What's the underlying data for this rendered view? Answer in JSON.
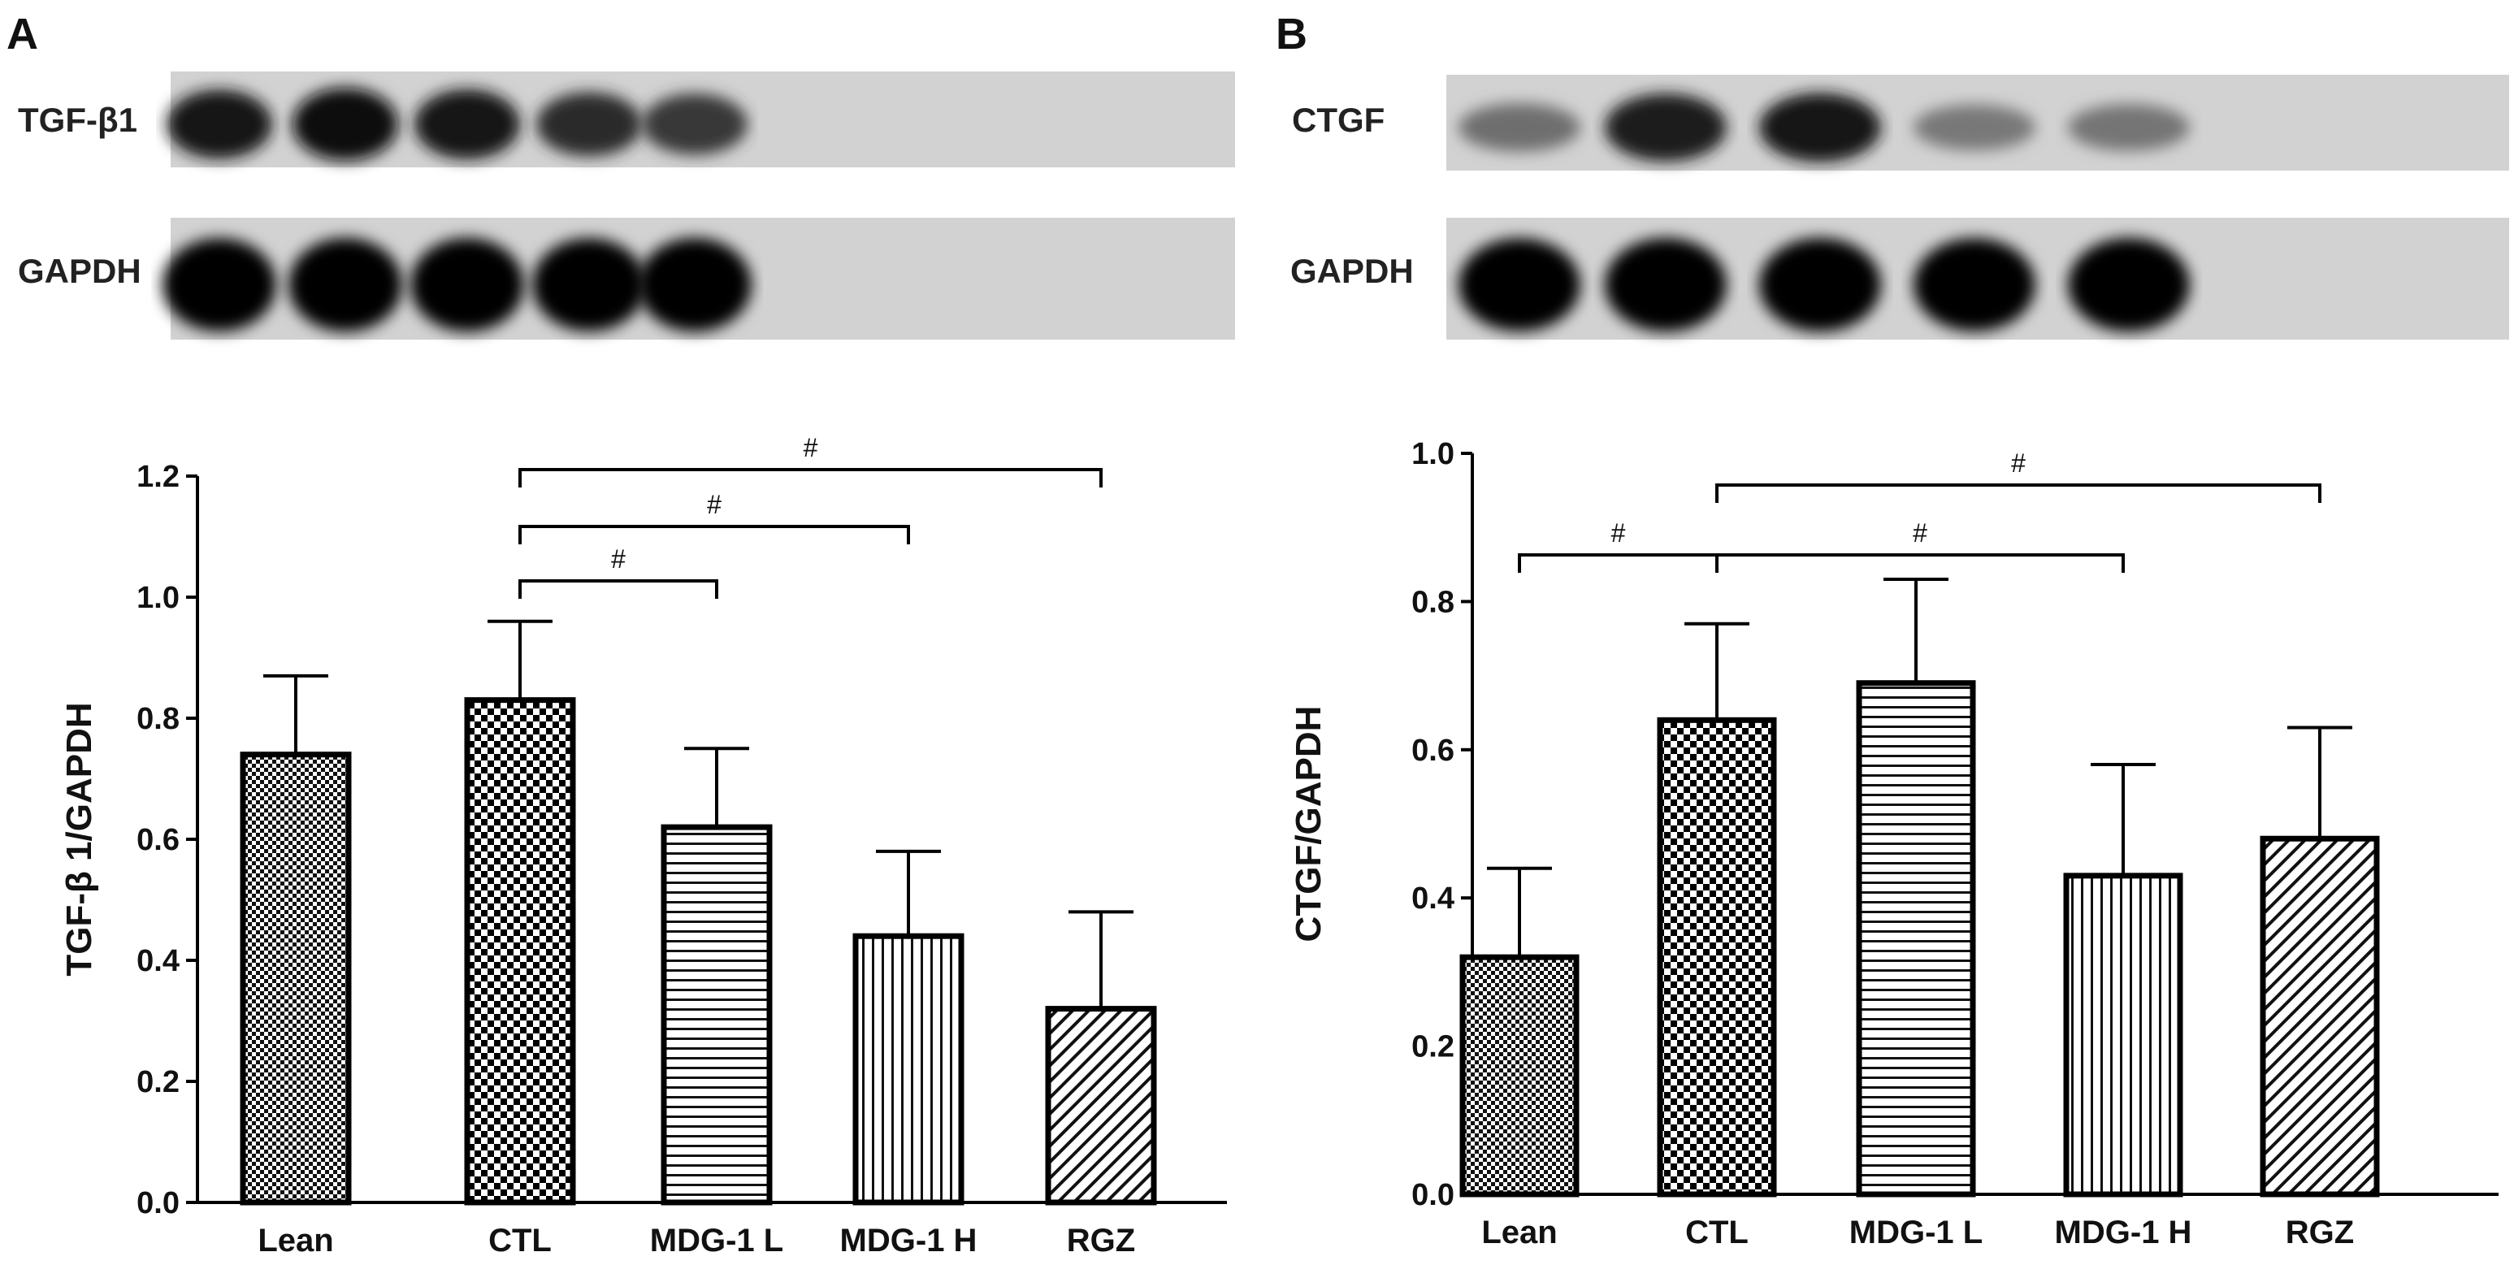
{
  "panels": [
    {
      "letter": "A",
      "blots": [
        {
          "label": "TGF-β1",
          "intensities": [
            0.88,
            0.96,
            0.9,
            0.78,
            0.72
          ]
        },
        {
          "label": "GAPDH",
          "intensities": [
            0.97,
            0.98,
            0.98,
            0.97,
            0.98
          ]
        }
      ]
    },
    {
      "letter": "B",
      "blots": [
        {
          "label": "CTGF",
          "intensities": [
            0.45,
            0.86,
            0.88,
            0.4,
            0.42
          ]
        },
        {
          "label": "GAPDH",
          "intensities": [
            0.97,
            0.98,
            0.98,
            0.97,
            0.98
          ]
        }
      ]
    }
  ],
  "chart_data": [
    {
      "type": "bar",
      "categories": [
        "Lean",
        "CTL",
        "MDG-1 L",
        "MDG-1 H",
        "RGZ"
      ],
      "values": [
        0.74,
        0.83,
        0.62,
        0.44,
        0.32
      ],
      "error": [
        0.13,
        0.13,
        0.13,
        0.14,
        0.16
      ],
      "patterns": [
        "fine-check",
        "coarse-check",
        "horizontal",
        "vertical",
        "diagonal"
      ],
      "ylabel": "TGF-β 1/GAPDH",
      "ylim": [
        0,
        1.2
      ],
      "yticks": [
        "0.0",
        "0.2",
        "0.4",
        "0.6",
        "0.8",
        "1.0",
        "1.2"
      ],
      "significance": [
        {
          "from": 1,
          "to": 2,
          "label": "#"
        },
        {
          "from": 1,
          "to": 3,
          "label": "#"
        },
        {
          "from": 1,
          "to": 4,
          "label": "#"
        }
      ]
    },
    {
      "type": "bar",
      "categories": [
        "Lean",
        "CTL",
        "MDG-1 L",
        "MDG-1 H",
        "RGZ"
      ],
      "values": [
        0.32,
        0.64,
        0.69,
        0.43,
        0.48
      ],
      "error": [
        0.12,
        0.13,
        0.14,
        0.15,
        0.15
      ],
      "patterns": [
        "fine-check",
        "coarse-check",
        "horizontal",
        "vertical",
        "diagonal"
      ],
      "ylabel": "CTGF/GAPDH",
      "ylim": [
        0,
        1.0
      ],
      "yticks": [
        "0.0",
        "0.2",
        "0.4",
        "0.6",
        "0.8",
        "1.0"
      ],
      "significance": [
        {
          "from": 0,
          "to": 1,
          "label": "#"
        },
        {
          "from": 1,
          "to": 3,
          "label": "#"
        },
        {
          "from": 1,
          "to": 4,
          "label": "#"
        }
      ]
    }
  ]
}
